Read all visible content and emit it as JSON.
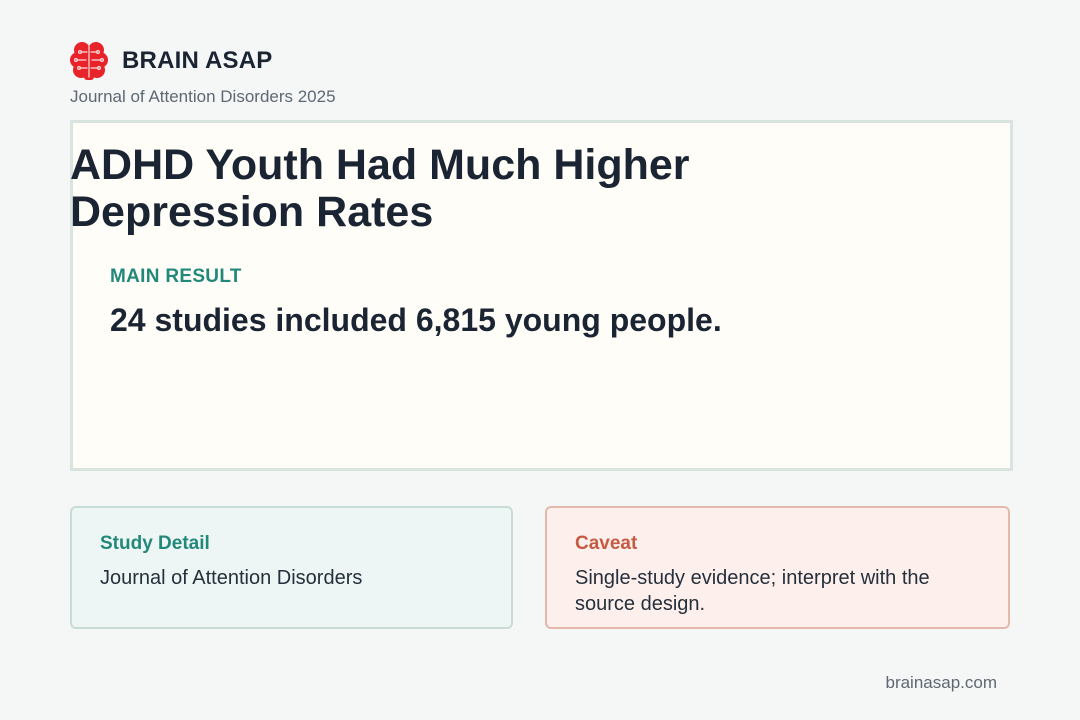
{
  "brand": {
    "name": "BRAIN ASAP",
    "logo_icon": "brain-icon",
    "logo_color": "#e8232a"
  },
  "source": "Journal of Attention Disorders 2025",
  "main": {
    "headline": "ADHD Youth Had Much Higher Depression Rates",
    "result_label": "MAIN RESULT",
    "result_text": "24 studies included 6,815 young people."
  },
  "study_detail": {
    "heading": "Study Detail",
    "body": "Journal of Attention Disorders"
  },
  "caveat": {
    "heading": "Caveat",
    "body": "Single-study evidence; interpret with the source design."
  },
  "footer": {
    "site": "brainasap.com"
  },
  "colors": {
    "accent_teal": "#22897a",
    "accent_red": "#c65a42",
    "text_dark": "#1b2432",
    "muted": "#5e6873"
  }
}
